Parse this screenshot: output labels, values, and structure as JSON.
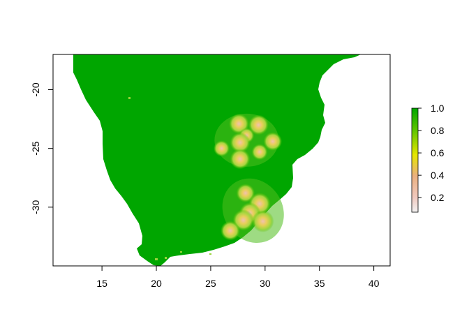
{
  "chart_data": {
    "type": "heatmap",
    "title": "",
    "xlabel": "",
    "ylabel": "",
    "xlim": [
      10.5,
      41.5
    ],
    "ylim": [
      -35,
      -17
    ],
    "x_ticks": [
      15,
      20,
      25,
      30,
      35,
      40
    ],
    "y_ticks": [
      -20,
      -25,
      -30
    ],
    "legend": {
      "position": "right",
      "range": [
        0.07,
        1.0
      ],
      "ticks": [
        0.2,
        0.4,
        0.6,
        0.8,
        1.0
      ],
      "tick_labels": [
        "0.2",
        "0.4",
        "0.6",
        "0.8",
        "1.0"
      ],
      "colors": [
        "#f2f2f2",
        "#f0c9c0",
        "#ebb07e",
        "#e6e600",
        "#63c600",
        "#00a600"
      ]
    },
    "base_value": 1.0,
    "hotspots": [
      {
        "x": 27.6,
        "y": -22.9,
        "value": 0.45
      },
      {
        "x": 29.4,
        "y": -23.0,
        "value": 0.45
      },
      {
        "x": 28.3,
        "y": -23.9,
        "value": 0.75
      },
      {
        "x": 27.7,
        "y": -24.5,
        "value": 0.45
      },
      {
        "x": 30.7,
        "y": -24.4,
        "value": 0.55
      },
      {
        "x": 26.0,
        "y": -25.0,
        "value": 0.7
      },
      {
        "x": 29.5,
        "y": -25.3,
        "value": 0.7
      },
      {
        "x": 27.7,
        "y": -25.9,
        "value": 0.45
      },
      {
        "x": 28.2,
        "y": -28.8,
        "value": 0.55
      },
      {
        "x": 29.5,
        "y": -29.7,
        "value": 0.35
      },
      {
        "x": 28.6,
        "y": -30.5,
        "value": 0.4
      },
      {
        "x": 28.0,
        "y": -31.1,
        "value": 0.4
      },
      {
        "x": 29.8,
        "y": -31.2,
        "value": 0.35
      },
      {
        "x": 26.8,
        "y": -32.0,
        "value": 0.5
      }
    ]
  }
}
